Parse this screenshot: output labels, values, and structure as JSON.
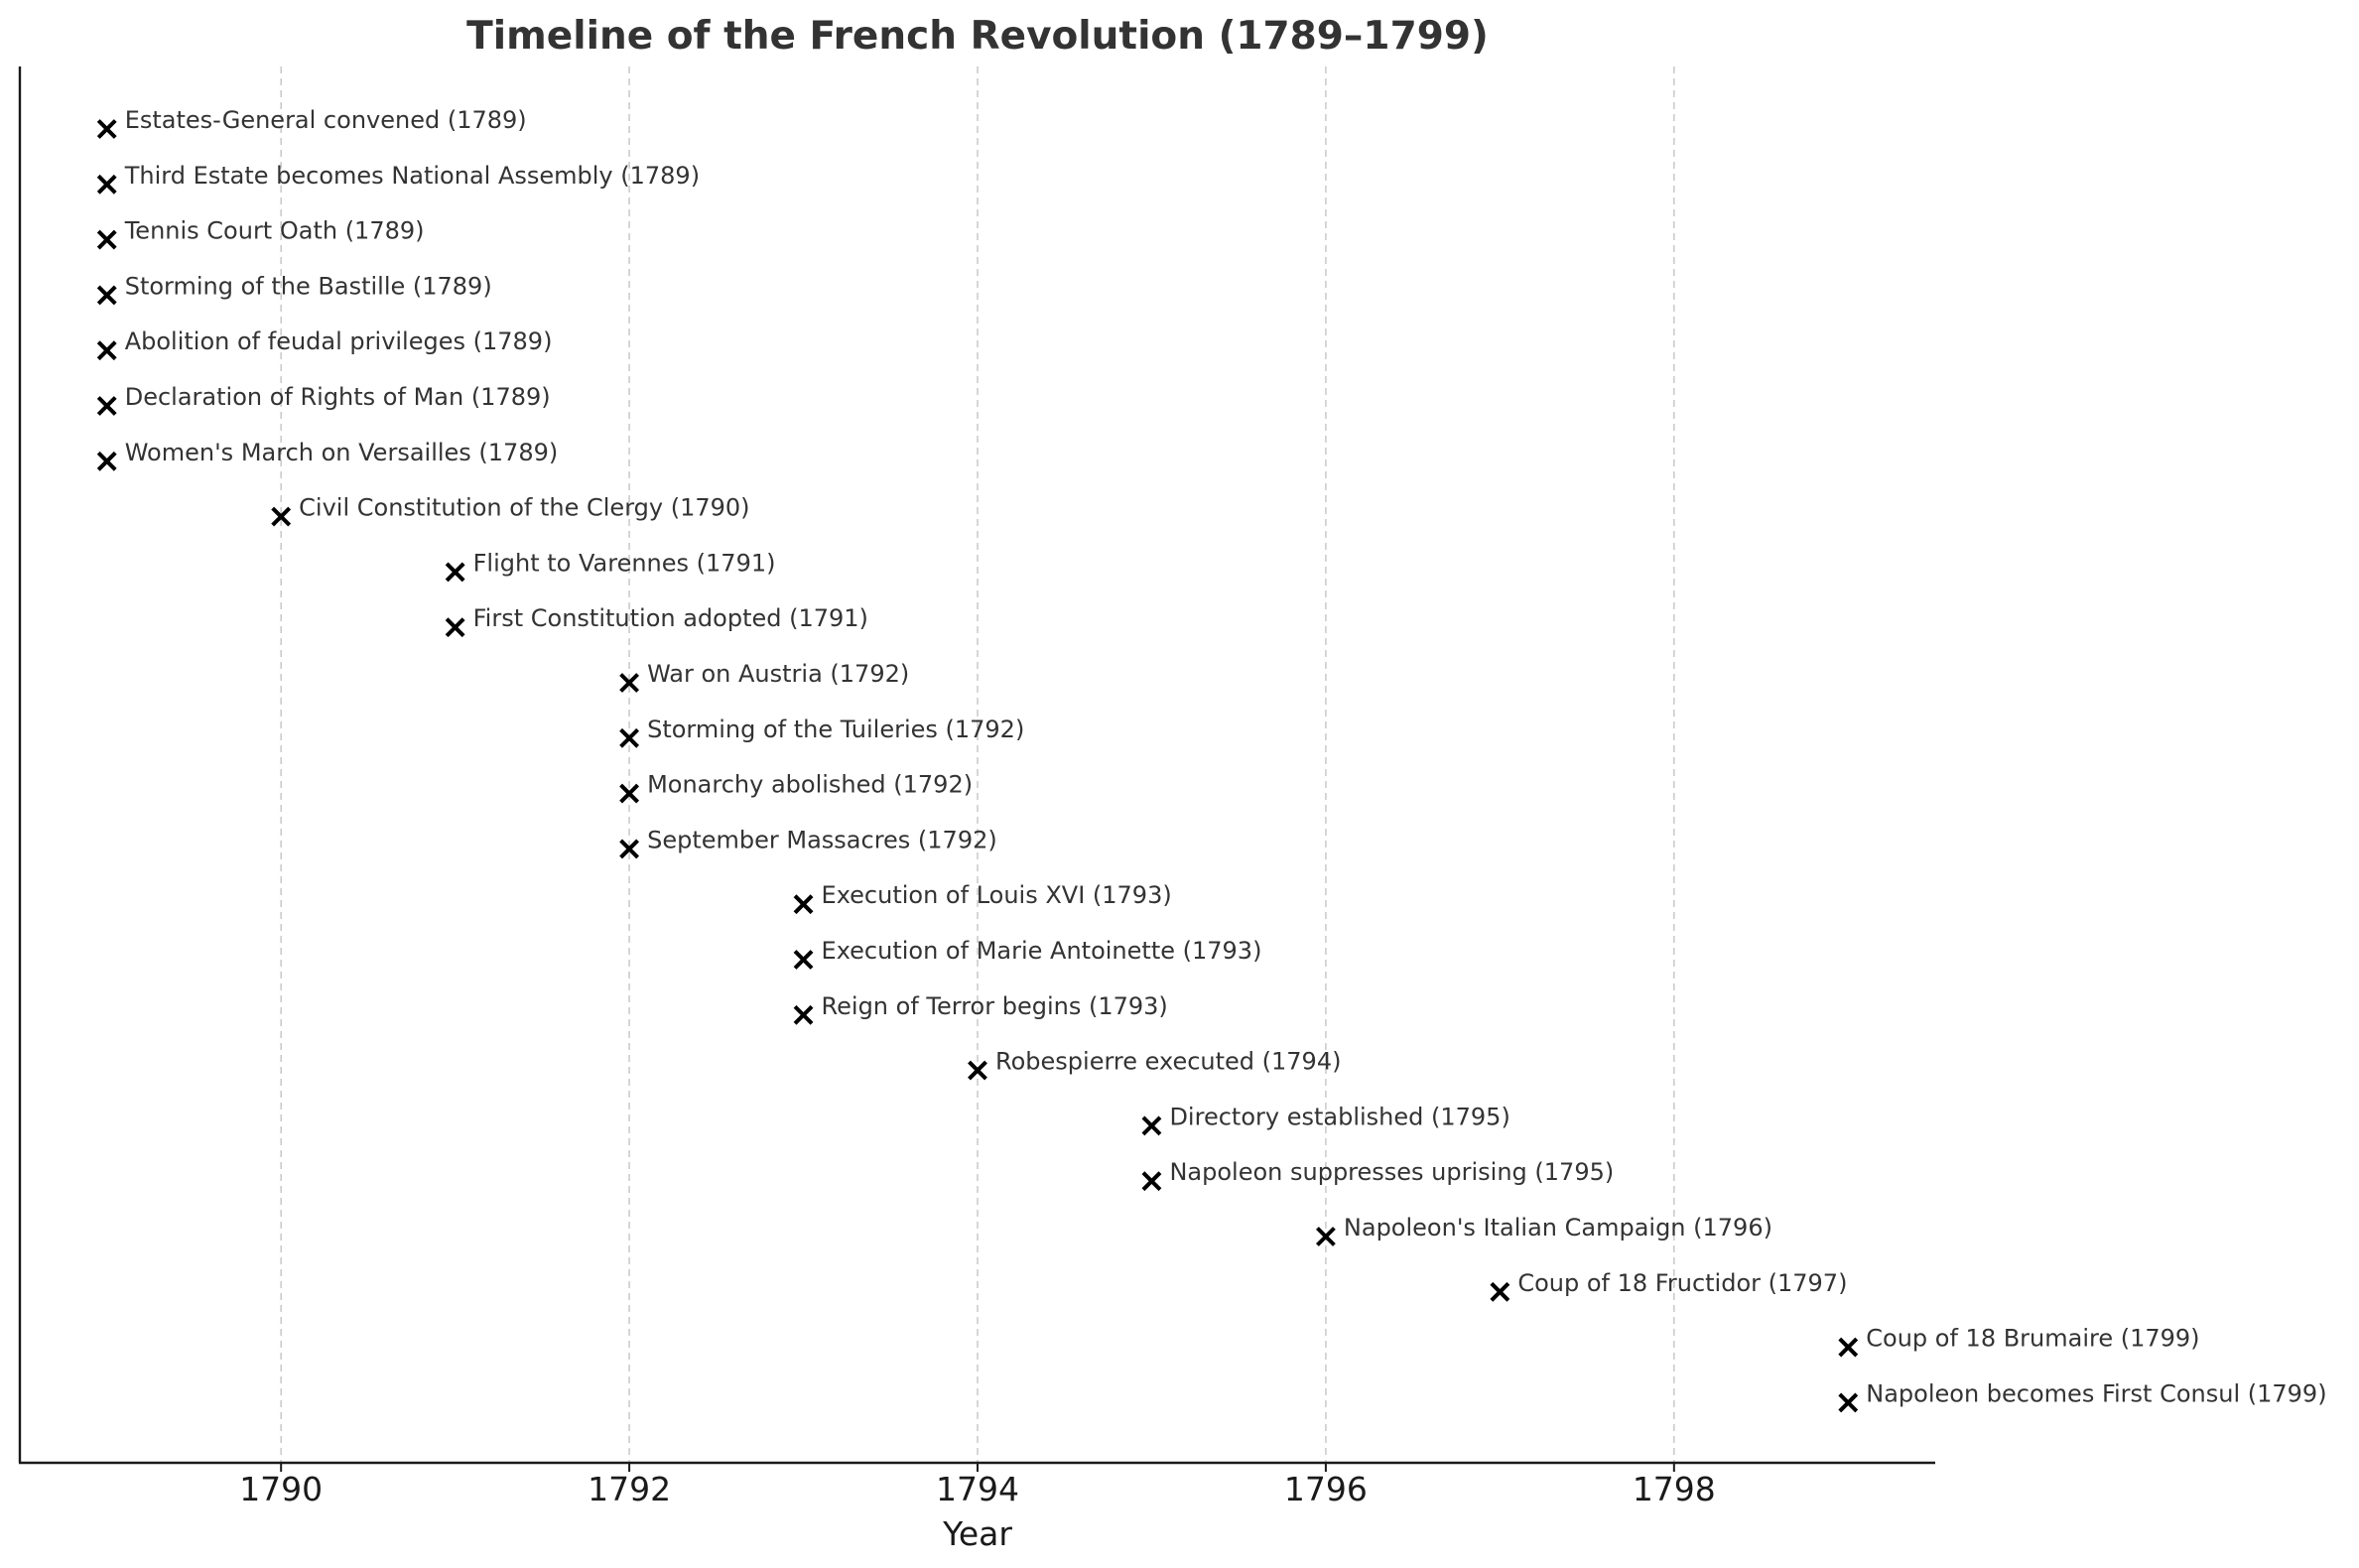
{
  "chart_data": {
    "type": "scatter",
    "title": "Timeline of the French Revolution (1789–1799)",
    "xlabel": "Year",
    "ylabel": "",
    "xlim": [
      1788.5,
      1799.5
    ],
    "xticks": [
      1790,
      1792,
      1794,
      1796,
      1798
    ],
    "grid": "vertical dashed",
    "marker": "x",
    "marker_color": "#000000",
    "grid_color": "#cccccc",
    "text_color": "#333333",
    "events": [
      {
        "year": 1789,
        "label": "Estates-General convened (1789)"
      },
      {
        "year": 1789,
        "label": "Third Estate becomes National Assembly (1789)"
      },
      {
        "year": 1789,
        "label": "Tennis Court Oath (1789)"
      },
      {
        "year": 1789,
        "label": "Storming of the Bastille (1789)"
      },
      {
        "year": 1789,
        "label": "Abolition of feudal privileges (1789)"
      },
      {
        "year": 1789,
        "label": "Declaration of Rights of Man (1789)"
      },
      {
        "year": 1789,
        "label": "Women's March on Versailles (1789)"
      },
      {
        "year": 1790,
        "label": "Civil Constitution of the Clergy (1790)"
      },
      {
        "year": 1791,
        "label": "Flight to Varennes (1791)"
      },
      {
        "year": 1791,
        "label": "First Constitution adopted (1791)"
      },
      {
        "year": 1792,
        "label": "War on Austria (1792)"
      },
      {
        "year": 1792,
        "label": "Storming of the Tuileries (1792)"
      },
      {
        "year": 1792,
        "label": "Monarchy abolished (1792)"
      },
      {
        "year": 1792,
        "label": "September Massacres (1792)"
      },
      {
        "year": 1793,
        "label": "Execution of Louis XVI (1793)"
      },
      {
        "year": 1793,
        "label": "Execution of Marie Antoinette (1793)"
      },
      {
        "year": 1793,
        "label": "Reign of Terror begins (1793)"
      },
      {
        "year": 1794,
        "label": "Robespierre executed (1794)"
      },
      {
        "year": 1795,
        "label": "Directory established (1795)"
      },
      {
        "year": 1795,
        "label": "Napoleon suppresses uprising (1795)"
      },
      {
        "year": 1796,
        "label": "Napoleon's Italian Campaign (1796)"
      },
      {
        "year": 1797,
        "label": "Coup of 18 Fructidor (1797)"
      },
      {
        "year": 1799,
        "label": "Coup of 18 Brumaire (1799)"
      },
      {
        "year": 1799,
        "label": "Napoleon becomes First Consul (1799)"
      }
    ]
  }
}
